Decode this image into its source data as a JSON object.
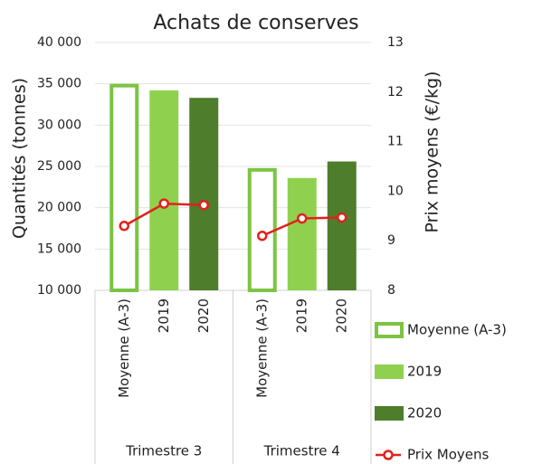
{
  "chart_data": {
    "type": "bar_line",
    "title": "Achats de conserves",
    "y_label": "Quantités (tonnes)",
    "y2_label": "Prix moyens (€/kg)",
    "categories": [
      "Trimestre 3",
      "Trimestre 4"
    ],
    "series": [
      {
        "name": "Moyenne (A-3)",
        "color": "#7cc443",
        "style": "outline",
        "values": [
          35000,
          24800
        ]
      },
      {
        "name": "2019",
        "color": "#8fd14f",
        "values": [
          34200,
          23600
        ]
      },
      {
        "name": "2020",
        "color": "#4e7d2b",
        "values": [
          33300,
          25600
        ]
      },
      {
        "name": "Prix Moyens",
        "color": "#e3201b",
        "axis": "y2",
        "values": [
          [
            9.3,
            9.75,
            9.72
          ],
          [
            9.1,
            9.45,
            9.47
          ]
        ]
      }
    ],
    "ylim": [
      10000,
      40000
    ],
    "yticks": [
      {
        "value": 10000,
        "label": "10 000"
      },
      {
        "value": 15000,
        "label": "15 000"
      },
      {
        "value": 20000,
        "label": "20 000"
      },
      {
        "value": 25000,
        "label": "25 000"
      },
      {
        "value": 30000,
        "label": "30 000"
      },
      {
        "value": 35000,
        "label": "35 000"
      },
      {
        "value": 40000,
        "label": "40 000"
      }
    ],
    "y2lim": [
      8,
      13
    ],
    "y2ticks": [
      8,
      9,
      10,
      11,
      12,
      13
    ],
    "grid": true,
    "legend": "bottom-right"
  }
}
